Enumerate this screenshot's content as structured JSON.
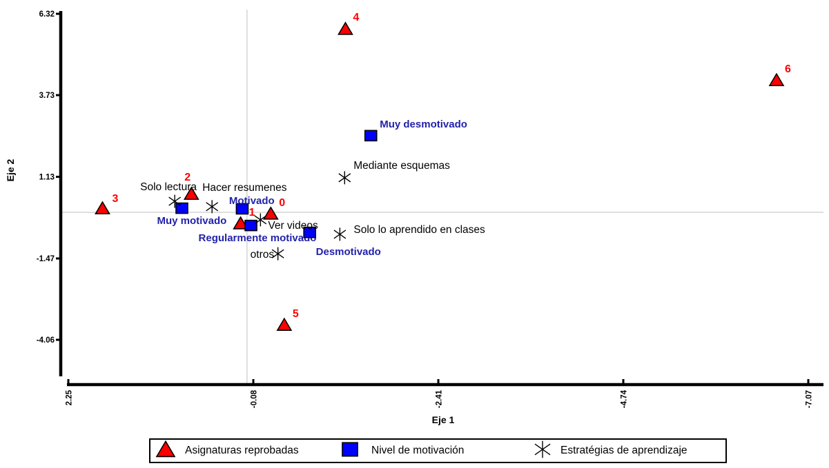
{
  "figure": {
    "background": "#FFFFFF",
    "axis_color": "#000000",
    "grid_color": "#D4D4D4"
  },
  "chart_data": {
    "type": "scatter",
    "title": "",
    "xlabel": "Eje 1",
    "ylabel": "Eje 2",
    "x_axis_reversed": true,
    "x_ticks": [
      2.25,
      -0.08,
      -2.41,
      -4.74,
      -7.07
    ],
    "y_ticks": [
      6.32,
      3.73,
      1.13,
      -1.47,
      -4.06
    ],
    "xlim": [
      2.25,
      -7.07
    ],
    "ylim": [
      6.32,
      -4.06
    ],
    "grid": {
      "x_value": 0,
      "y_value": 0,
      "style": "solid"
    },
    "series": [
      {
        "name": "Asignaturas reprobadas",
        "marker": "triangle",
        "marker_fill": "#FF0000",
        "marker_stroke": "#000000",
        "label_color": "#FF0000",
        "label_class": "num-label",
        "points": [
          {
            "label": "0",
            "x": -0.3,
            "y": -0.04,
            "dx": 12,
            "dy": -11
          },
          {
            "label": "1",
            "x": 0.08,
            "y": -0.35,
            "dx": 12,
            "dy": -11
          },
          {
            "label": "2",
            "x": 0.7,
            "y": 0.59,
            "dx": -10,
            "dy": -19
          },
          {
            "label": "3",
            "x": 1.82,
            "y": 0.13,
            "dx": 14,
            "dy": -9
          },
          {
            "label": "4",
            "x": -1.24,
            "y": 5.84,
            "dx": 11,
            "dy": -12
          },
          {
            "label": "5",
            "x": -0.47,
            "y": -3.58,
            "dx": 12,
            "dy": -11
          },
          {
            "label": "6",
            "x": -6.67,
            "y": 4.21,
            "dx": 12,
            "dy": -11
          }
        ]
      },
      {
        "name": "Nivel de motivación",
        "marker": "square",
        "marker_fill": "#0000FF",
        "marker_stroke": "#000000",
        "label_color": "#2222AA",
        "label_class": "cat-label",
        "points": [
          {
            "label": "Muy desmotivado",
            "x": -1.56,
            "y": 2.44,
            "dx": 13,
            "dy": -12
          },
          {
            "label": "Motivado",
            "x": 0.06,
            "y": 0.11,
            "dx": -19,
            "dy": -7
          },
          {
            "label": "Muy motivado",
            "x": 0.82,
            "y": 0.13,
            "dx": -36,
            "dy": 23
          },
          {
            "label": "Regularmente motivado",
            "x": -0.05,
            "y": -0.42,
            "dx": -76,
            "dy": 23
          },
          {
            "label": "Desmotivado",
            "x": -0.79,
            "y": -0.64,
            "dx": 9,
            "dy": 33
          }
        ]
      },
      {
        "name": "Estratégias de aprendizaje",
        "marker": "asterisk",
        "marker_fill": "#000000",
        "marker_stroke": "#000000",
        "label_color": "#000000",
        "label_class": "strat-label",
        "points": [
          {
            "label": "Solo lectura",
            "x": 0.91,
            "y": 0.35,
            "dx": -50,
            "dy": -16
          },
          {
            "label": "Hacer resumenes",
            "x": 0.44,
            "y": 0.18,
            "dx": -14,
            "dy": -23
          },
          {
            "label": "Mediante esquemas",
            "x": -1.23,
            "y": 1.1,
            "dx": 13,
            "dy": -13
          },
          {
            "label": "Ver videos",
            "x": -0.17,
            "y": -0.24,
            "dx": 11,
            "dy": 13
          },
          {
            "label": "Solo lo aprendido en clases",
            "x": -1.17,
            "y": -0.7,
            "dx": 20,
            "dy": -2
          },
          {
            "label": "otros",
            "x": -0.39,
            "y": -1.32,
            "dx": -40,
            "dy": 6
          }
        ]
      }
    ],
    "legend": {
      "position": "bottom",
      "items": [
        "Asignaturas reprobadas",
        "Nivel de motivación",
        "Estratégias de aprendizaje"
      ]
    }
  }
}
